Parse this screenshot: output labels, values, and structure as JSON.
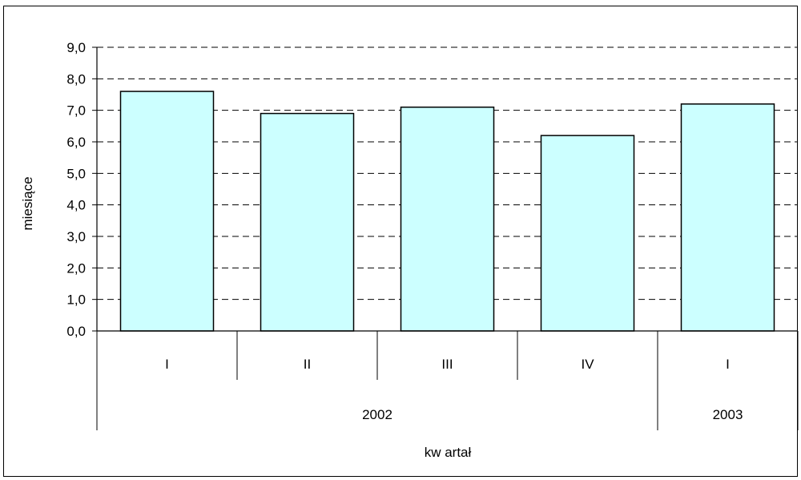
{
  "chart_data": {
    "type": "bar",
    "categories": [
      "I",
      "II",
      "III",
      "IV",
      "I"
    ],
    "groups": [
      {
        "label": "2002",
        "span": 4
      },
      {
        "label": "2003",
        "span": 1
      }
    ],
    "values": [
      7.6,
      6.9,
      7.1,
      6.2,
      7.2
    ],
    "xlabel": "kw artał",
    "ylabel": "miesiące",
    "ylim": [
      0,
      9
    ],
    "ytick_step": 1,
    "ytick_labels": [
      "0,0",
      "1,0",
      "2,0",
      "3,0",
      "4,0",
      "5,0",
      "6,0",
      "7,0",
      "8,0",
      "9,0"
    ],
    "grid": "horizontal dashed",
    "legend": "none",
    "colors": {
      "bar_fill": "#ccffff",
      "bar_stroke": "#000000",
      "grid": "#000000"
    }
  }
}
